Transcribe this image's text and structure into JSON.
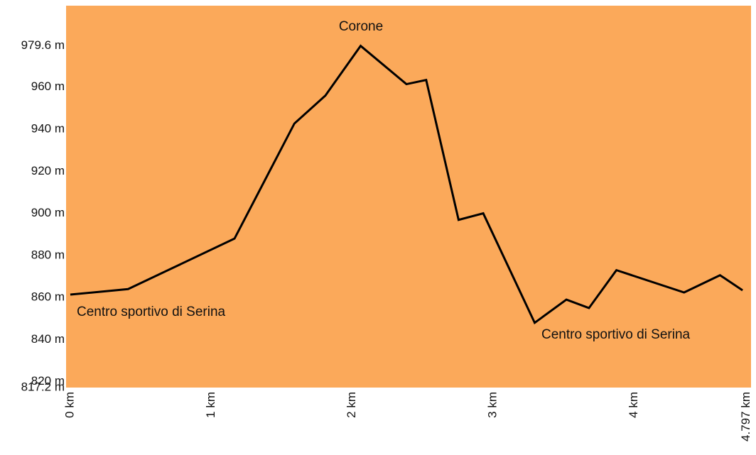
{
  "chart_data": {
    "type": "line",
    "x": [
      0,
      0.41,
      1.165,
      1.59,
      1.81,
      2.06,
      2.385,
      2.525,
      2.755,
      2.93,
      3.295,
      3.52,
      3.68,
      3.875,
      4.355,
      4.61,
      4.77
    ],
    "series": [
      {
        "color": "#000000",
        "values": [
          861.4,
          864,
          888,
          942.7,
          956,
          979.6,
          961.4,
          963.4,
          896.9,
          900,
          848,
          859,
          855,
          873,
          862.4,
          870.6,
          863.4
        ]
      }
    ],
    "background": "#fba95a",
    "xlim": [
      -0.03,
      4.83
    ],
    "ylim": [
      817.2,
      998.7
    ],
    "xticks": [
      {
        "value": 0,
        "label": "0 km"
      },
      {
        "value": 1,
        "label": "1 km"
      },
      {
        "value": 2,
        "label": "2 km"
      },
      {
        "value": 3,
        "label": "3 km"
      },
      {
        "value": 4,
        "label": "4 km"
      },
      {
        "value": 4.797,
        "label": "4.797 km"
      }
    ],
    "yticks": [
      {
        "value": 817.2,
        "label": "817.2 m"
      },
      {
        "value": 820,
        "label": "820 m"
      },
      {
        "value": 840,
        "label": "840 m"
      },
      {
        "value": 860,
        "label": "860 m"
      },
      {
        "value": 880,
        "label": "880 m"
      },
      {
        "value": 900,
        "label": "900 m"
      },
      {
        "value": 920,
        "label": "920 m"
      },
      {
        "value": 940,
        "label": "940 m"
      },
      {
        "value": 960,
        "label": "960 m"
      },
      {
        "value": 979.6,
        "label": "979.6 m"
      }
    ],
    "annotations": [
      {
        "text": "Corone"
      },
      {
        "text": "Centro sportivo di Serina"
      },
      {
        "text": "Centro sportivo di Serina"
      }
    ]
  }
}
